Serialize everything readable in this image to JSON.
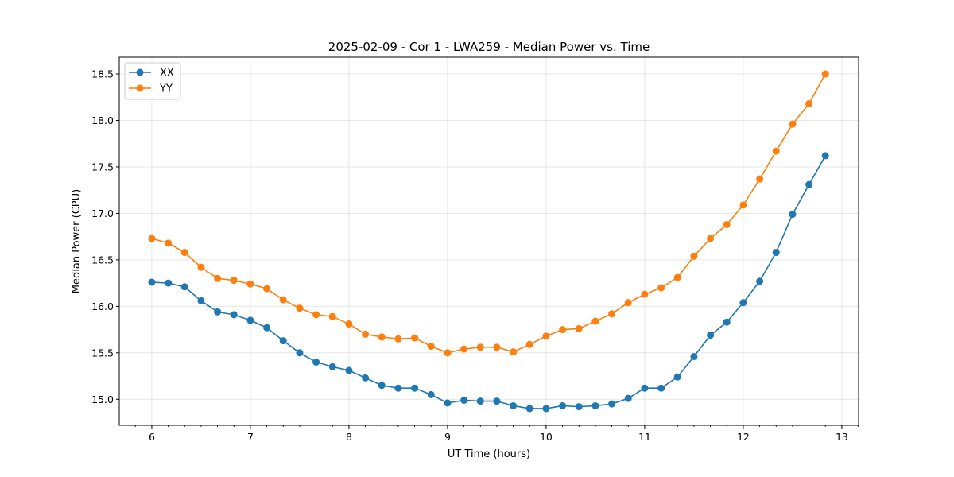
{
  "chart_data": {
    "type": "line",
    "title": "2025-02-09 - Cor 1 - LWA259 - Median Power vs. Time",
    "xlabel": "UT Time (hours)",
    "ylabel": "Median Power (CPU)",
    "xlim": [
      5.67,
      13.17
    ],
    "ylim": [
      14.72,
      18.68
    ],
    "xticks": [
      6,
      7,
      8,
      9,
      10,
      11,
      12,
      13
    ],
    "yticks": [
      15.0,
      15.5,
      16.0,
      16.5,
      17.0,
      17.5,
      18.0,
      18.5
    ],
    "ytick_labels": [
      "15.0",
      "15.5",
      "16.0",
      "16.5",
      "17.0",
      "17.5",
      "18.0",
      "18.5"
    ],
    "grid": true,
    "legend_position": "upper-left",
    "x": [
      6.0,
      6.167,
      6.333,
      6.5,
      6.667,
      6.833,
      7.0,
      7.167,
      7.333,
      7.5,
      7.667,
      7.833,
      8.0,
      8.167,
      8.333,
      8.5,
      8.667,
      8.833,
      9.0,
      9.167,
      9.333,
      9.5,
      9.667,
      9.833,
      10.0,
      10.167,
      10.333,
      10.5,
      10.667,
      10.833,
      11.0,
      11.167,
      11.333,
      11.5,
      11.667,
      11.833,
      12.0,
      12.167,
      12.333,
      12.5,
      12.667,
      12.833
    ],
    "series": [
      {
        "name": "XX",
        "color": "#1f77b4",
        "values": [
          16.26,
          16.25,
          16.21,
          16.06,
          15.94,
          15.91,
          15.85,
          15.77,
          15.63,
          15.5,
          15.4,
          15.35,
          15.31,
          15.23,
          15.15,
          15.12,
          15.12,
          15.05,
          14.96,
          14.99,
          14.98,
          14.98,
          14.93,
          14.9,
          14.9,
          14.93,
          14.92,
          14.93,
          14.95,
          15.01,
          15.12,
          15.12,
          15.24,
          15.46,
          15.69,
          15.83,
          16.04,
          16.27,
          16.58,
          16.99,
          17.31,
          17.62
        ]
      },
      {
        "name": "YY",
        "color": "#ff7f0e",
        "values": [
          16.73,
          16.68,
          16.58,
          16.42,
          16.3,
          16.28,
          16.24,
          16.19,
          16.07,
          15.98,
          15.91,
          15.89,
          15.81,
          15.7,
          15.67,
          15.65,
          15.66,
          15.57,
          15.5,
          15.54,
          15.56,
          15.56,
          15.51,
          15.59,
          15.68,
          15.75,
          15.76,
          15.84,
          15.92,
          16.04,
          16.13,
          16.2,
          16.31,
          16.54,
          16.73,
          16.88,
          17.09,
          17.37,
          17.67,
          17.96,
          18.18,
          18.5
        ]
      }
    ]
  }
}
